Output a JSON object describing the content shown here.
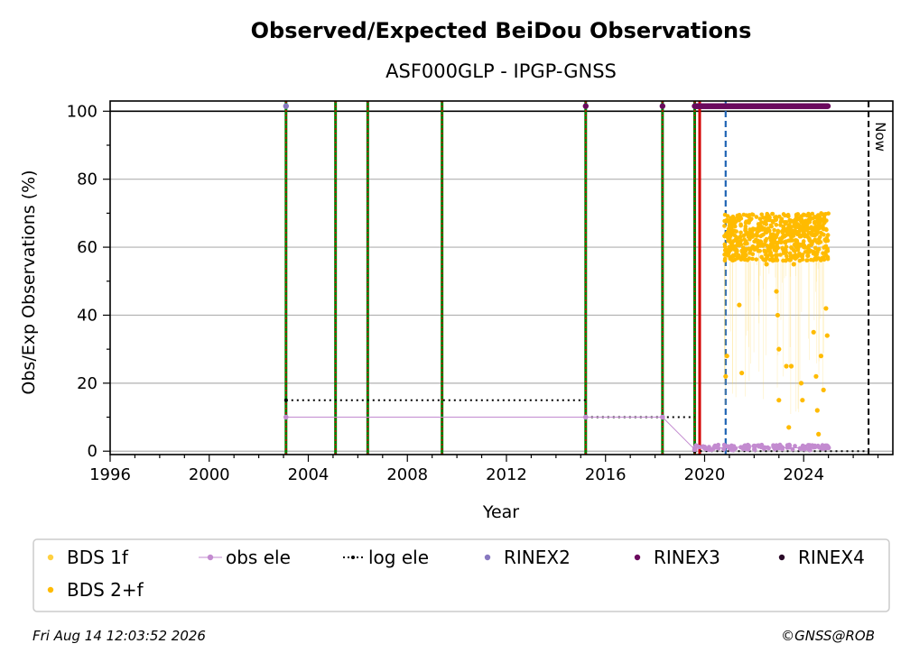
{
  "chart_data": {
    "type": "scatter",
    "title": "Observed/Expected BeiDou Observations",
    "subtitle": "ASF000GLP - IPGP-GNSS",
    "xlabel": "Year",
    "ylabel": "Obs/Exp Observations (%)",
    "xlim": [
      1996,
      2027.6
    ],
    "ylim": [
      -1,
      103
    ],
    "x_ticks": [
      1996,
      2000,
      2004,
      2008,
      2012,
      2016,
      2020,
      2024
    ],
    "y_ticks": [
      0,
      20,
      40,
      60,
      80,
      100
    ],
    "grid": "horizontal",
    "reference_line_y": 100,
    "now_label": "Now",
    "now_x": 2026.62,
    "legend": {
      "placement": "below",
      "entries": [
        {
          "label": "BDS 1f",
          "color": "#ffd040",
          "marker": "dot"
        },
        {
          "label": "obs ele",
          "color": "#c38bd0",
          "marker": "line-dot"
        },
        {
          "label": "log ele",
          "color": "#000000",
          "marker": "dotted-line"
        },
        {
          "label": "RINEX2",
          "color": "#8878c0",
          "marker": "dot"
        },
        {
          "label": "RINEX3",
          "color": "#6b0a5e",
          "marker": "dot"
        },
        {
          "label": "RINEX4",
          "color": "#2a0a28",
          "marker": "dot"
        },
        {
          "label": "BDS 2+f",
          "color": "#ffbb00",
          "marker": "dot"
        }
      ]
    },
    "event_lines_green_red": [
      2003.1,
      2005.1,
      2006.4,
      2009.4,
      2015.2,
      2018.3,
      2019.6
    ],
    "event_lines_red": [
      2019.8
    ],
    "event_lines_blue_dashed": [
      2020.85
    ],
    "log_ele": [
      {
        "x": [
          2003.1,
          2015.2
        ],
        "y": 15
      },
      {
        "x": [
          2015.2,
          2019.6
        ],
        "y": 10
      },
      {
        "x": [
          2019.6,
          2026.62
        ],
        "y": 0
      }
    ],
    "obs_ele": {
      "x": [
        2003.1,
        2015.2,
        2018.3,
        2019.6,
        2020.0,
        2021.0,
        2022.0,
        2023.0,
        2024.0,
        2025.0
      ],
      "y": [
        10,
        10,
        10,
        0.5,
        1,
        1,
        1.5,
        1,
        1,
        1
      ]
    },
    "rinex2_points": {
      "x": [
        2003.1
      ],
      "y": [
        101.5
      ]
    },
    "rinex3_points": {
      "x": [
        2015.2,
        2018.3
      ],
      "y": [
        101.5,
        101.5
      ]
    },
    "rinex3_band": {
      "x_start": 2019.6,
      "x_end": 2025.0,
      "y": 101.5
    },
    "bds_2f_series": {
      "x_start": 2020.8,
      "x_end": 2025.0,
      "typical_range": [
        56,
        70
      ],
      "samples": [
        {
          "x": 2020.85,
          "y": 22
        },
        {
          "x": 2020.9,
          "y": 28
        },
        {
          "x": 2021.0,
          "y": 60
        },
        {
          "x": 2021.5,
          "y": 23
        },
        {
          "x": 2021.4,
          "y": 43
        },
        {
          "x": 2022.5,
          "y": 55
        },
        {
          "x": 2022.9,
          "y": 47
        },
        {
          "x": 2022.95,
          "y": 40
        },
        {
          "x": 2023.0,
          "y": 30
        },
        {
          "x": 2023.0,
          "y": 15
        },
        {
          "x": 2023.3,
          "y": 25
        },
        {
          "x": 2023.4,
          "y": 7
        },
        {
          "x": 2023.5,
          "y": 25
        },
        {
          "x": 2023.6,
          "y": 55
        },
        {
          "x": 2023.7,
          "y": 57
        },
        {
          "x": 2023.9,
          "y": 20
        },
        {
          "x": 2023.95,
          "y": 15
        },
        {
          "x": 2024.4,
          "y": 35
        },
        {
          "x": 2024.5,
          "y": 22
        },
        {
          "x": 2024.55,
          "y": 12
        },
        {
          "x": 2024.6,
          "y": 5
        },
        {
          "x": 2024.7,
          "y": 28
        },
        {
          "x": 2024.8,
          "y": 18
        },
        {
          "x": 2024.9,
          "y": 42
        },
        {
          "x": 2024.95,
          "y": 34
        }
      ]
    }
  },
  "footer": {
    "timestamp": "Fri Aug 14 12:03:52 2026",
    "credit": "©GNSS@ROB"
  },
  "colors": {
    "bds_2f": "#ffbb00",
    "bds_1f": "#ffd040",
    "obs_ele": "#c38bd0",
    "rinex2": "#8878c0",
    "rinex3": "#6b0a5e",
    "rinex4": "#2a0a28",
    "event_green": "#008000",
    "event_red": "#d40000",
    "event_blue": "#1f64b4",
    "grid": "#b0b0b0"
  }
}
